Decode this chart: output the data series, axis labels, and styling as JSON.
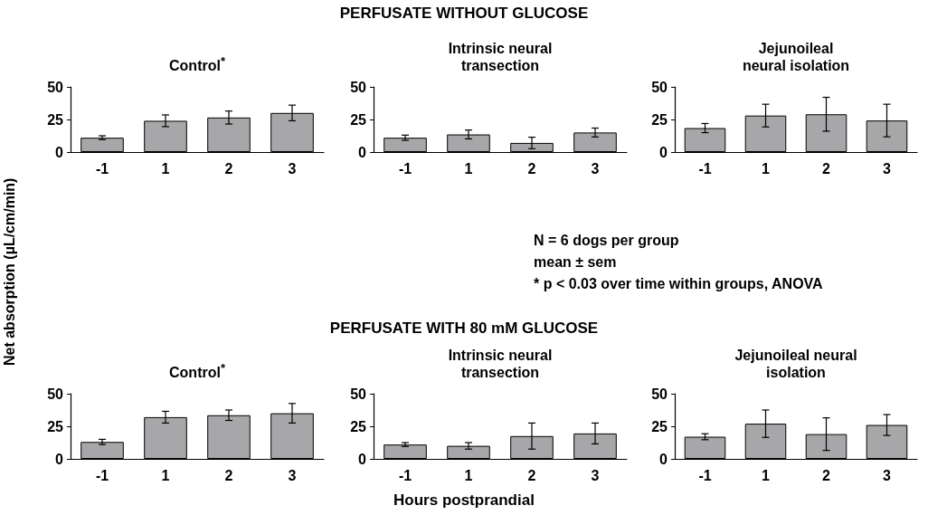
{
  "chart_data": [
    {
      "type": "bar",
      "title": "Control$^{*}$",
      "ylabel": "Net absorption (µL/cm/min)",
      "annotations": [
        "PERFUSATE WITHOUT GLUCOSE"
      ],
      "categories": [
        "-1",
        "1",
        "2",
        "3"
      ],
      "values": [
        11,
        24,
        26.5,
        30
      ],
      "errors": [
        1.5,
        4.5,
        5,
        6
      ],
      "color": "#a7a7a9",
      "ylim": [
        0,
        50
      ],
      "yticks": [
        0,
        25,
        50
      ],
      "grid": false
    },
    {
      "type": "bar",
      "title": "Intrinsic neural\ntransection",
      "categories": [
        "-1",
        "1",
        "2",
        "3"
      ],
      "values": [
        11,
        13.5,
        7,
        15
      ],
      "errors": [
        2,
        3.4,
        4.4,
        3.4
      ],
      "color": "#a7a7a9",
      "ylim": [
        0,
        50
      ],
      "yticks": [
        0,
        25,
        50
      ],
      "grid": false
    },
    {
      "type": "bar",
      "title": "Jejunoileal\nneural isolation",
      "annotations": [
        "N = 6 dogs per group",
        "mean ± sem",
        "* p < 0.03 over time within groups, ANOVA"
      ],
      "categories": [
        "-1",
        "1",
        "2",
        "3"
      ],
      "values": [
        18.4,
        28,
        29,
        24.2
      ],
      "errors": [
        3.5,
        8.7,
        13,
        12.5
      ],
      "color": "#a7a7a9",
      "ylim": [
        0,
        50
      ],
      "yticks": [
        0,
        25,
        50
      ],
      "grid": false
    },
    {
      "type": "bar",
      "title": "Control$^{*}$",
      "annotations": [
        "PERFUSATE WITH 80 mM GLUCOSE"
      ],
      "categories": [
        "-1",
        "1",
        "2",
        "3"
      ],
      "values": [
        13,
        32,
        33.5,
        35
      ],
      "errors": [
        2,
        4.5,
        4,
        7.5
      ],
      "color": "#a7a7a9",
      "ylim": [
        0,
        50
      ],
      "yticks": [
        0,
        25,
        50
      ],
      "grid": false
    },
    {
      "type": "bar",
      "title": "Intrinsic neural\ntransection",
      "xlabel": "Hours postprandial",
      "categories": [
        "-1",
        "1",
        "2",
        "3"
      ],
      "values": [
        11,
        10,
        17.5,
        19.5
      ],
      "errors": [
        1.5,
        2.5,
        10,
        8
      ],
      "color": "#a7a7a9",
      "ylim": [
        0,
        50
      ],
      "yticks": [
        0,
        25,
        50
      ],
      "grid": false
    },
    {
      "type": "bar",
      "title": "Jejunoileal neural\nisolation",
      "categories": [
        "-1",
        "1",
        "2",
        "3"
      ],
      "values": [
        17,
        27,
        19,
        26
      ],
      "errors": [
        2.3,
        10.5,
        12.5,
        8
      ],
      "color": "#a7a7a9",
      "ylim": [
        0,
        50
      ],
      "yticks": [
        0,
        25,
        50
      ],
      "grid": false
    }
  ]
}
